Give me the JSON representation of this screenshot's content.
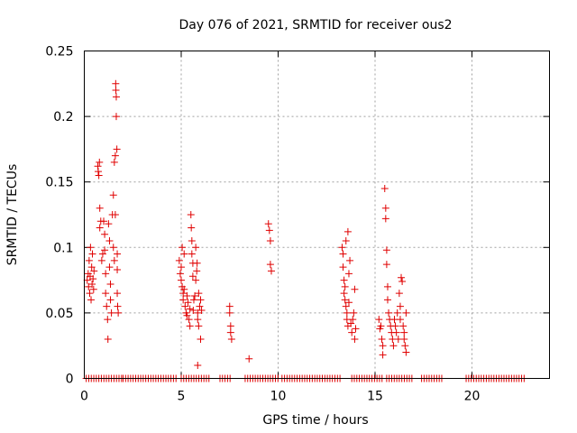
{
  "chart_data": {
    "type": "scatter",
    "title": "Day 076 of 2021, SRMTID for receiver ous2",
    "xlabel": "GPS time / hours",
    "ylabel": "SRMTID / TECUs",
    "xlim": [
      0,
      24
    ],
    "ylim": [
      0,
      0.25
    ],
    "xticks": [
      0,
      5,
      10,
      15,
      20
    ],
    "xtick_labels": [
      "0",
      "5",
      "10",
      "15",
      "20"
    ],
    "yticks": [
      0,
      0.05,
      0.1,
      0.15,
      0.2,
      0.25
    ],
    "ytick_labels": [
      "0",
      "0.05",
      "0.1",
      "0.15",
      "0.2",
      "0.25"
    ],
    "grid": true,
    "marker": "+",
    "color": "#e00000",
    "series": [
      {
        "name": "SRMTID",
        "points": [
          [
            0.15,
            0.075
          ],
          [
            0.2,
            0.08
          ],
          [
            0.22,
            0.07
          ],
          [
            0.25,
            0.09
          ],
          [
            0.28,
            0.065
          ],
          [
            0.3,
            0.078
          ],
          [
            0.32,
            0.1
          ],
          [
            0.35,
            0.06
          ],
          [
            0.38,
            0.085
          ],
          [
            0.4,
            0.072
          ],
          [
            0.42,
            0.095
          ],
          [
            0.45,
            0.076
          ],
          [
            0.48,
            0.068
          ],
          [
            0.5,
            0.082
          ],
          [
            0.7,
            0.162
          ],
          [
            0.72,
            0.158
          ],
          [
            0.75,
            0.155
          ],
          [
            0.78,
            0.165
          ],
          [
            0.8,
            0.13
          ],
          [
            0.8,
            0.115
          ],
          [
            0.85,
            0.12
          ],
          [
            0.9,
            0.09
          ],
          [
            0.95,
            0.095
          ],
          [
            1.0,
            0.12
          ],
          [
            1.05,
            0.11
          ],
          [
            1.05,
            0.098
          ],
          [
            1.1,
            0.08
          ],
          [
            1.1,
            0.065
          ],
          [
            1.15,
            0.055
          ],
          [
            1.2,
            0.045
          ],
          [
            1.22,
            0.03
          ],
          [
            1.25,
            0.118
          ],
          [
            1.3,
            0.105
          ],
          [
            1.3,
            0.085
          ],
          [
            1.35,
            0.072
          ],
          [
            1.35,
            0.06
          ],
          [
            1.4,
            0.05
          ],
          [
            1.45,
            0.125
          ],
          [
            1.5,
            0.14
          ],
          [
            1.5,
            0.1
          ],
          [
            1.55,
            0.09
          ],
          [
            1.55,
            0.165
          ],
          [
            1.6,
            0.17
          ],
          [
            1.6,
            0.125
          ],
          [
            1.62,
            0.225
          ],
          [
            1.63,
            0.22
          ],
          [
            1.65,
            0.215
          ],
          [
            1.65,
            0.2
          ],
          [
            1.68,
            0.175
          ],
          [
            1.7,
            0.095
          ],
          [
            1.7,
            0.083
          ],
          [
            1.7,
            0.065
          ],
          [
            1.72,
            0.055
          ],
          [
            1.75,
            0.05
          ],
          [
            4.9,
            0.09
          ],
          [
            4.95,
            0.08
          ],
          [
            5.0,
            0.085
          ],
          [
            5.0,
            0.075
          ],
          [
            5.05,
            0.07
          ],
          [
            5.05,
            0.1
          ],
          [
            5.1,
            0.065
          ],
          [
            5.1,
            0.06
          ],
          [
            5.15,
            0.095
          ],
          [
            5.15,
            0.068
          ],
          [
            5.2,
            0.055
          ],
          [
            5.25,
            0.05
          ],
          [
            5.3,
            0.063
          ],
          [
            5.3,
            0.048
          ],
          [
            5.35,
            0.058
          ],
          [
            5.4,
            0.045
          ],
          [
            5.45,
            0.04
          ],
          [
            5.45,
            0.053
          ],
          [
            5.5,
            0.125
          ],
          [
            5.52,
            0.115
          ],
          [
            5.55,
            0.105
          ],
          [
            5.55,
            0.095
          ],
          [
            5.6,
            0.088
          ],
          [
            5.6,
            0.078
          ],
          [
            5.62,
            0.052
          ],
          [
            5.65,
            0.06
          ],
          [
            5.7,
            0.063
          ],
          [
            5.75,
            0.1
          ],
          [
            5.75,
            0.075
          ],
          [
            5.8,
            0.082
          ],
          [
            5.82,
            0.088
          ],
          [
            5.85,
            0.045
          ],
          [
            5.85,
            0.05
          ],
          [
            5.9,
            0.065
          ],
          [
            5.9,
            0.04
          ],
          [
            5.95,
            0.055
          ],
          [
            6.0,
            0.06
          ],
          [
            6.0,
            0.03
          ],
          [
            6.05,
            0.052
          ],
          [
            5.85,
            0.01
          ],
          [
            7.5,
            0.055
          ],
          [
            7.5,
            0.05
          ],
          [
            7.55,
            0.04
          ],
          [
            7.55,
            0.035
          ],
          [
            7.6,
            0.03
          ],
          [
            8.5,
            0.015
          ],
          [
            9.5,
            0.118
          ],
          [
            9.55,
            0.113
          ],
          [
            9.6,
            0.105
          ],
          [
            9.6,
            0.087
          ],
          [
            9.65,
            0.082
          ],
          [
            13.3,
            0.1
          ],
          [
            13.35,
            0.095
          ],
          [
            13.35,
            0.085
          ],
          [
            13.4,
            0.075
          ],
          [
            13.4,
            0.065
          ],
          [
            13.45,
            0.07
          ],
          [
            13.45,
            0.06
          ],
          [
            13.5,
            0.105
          ],
          [
            13.5,
            0.055
          ],
          [
            13.55,
            0.05
          ],
          [
            13.55,
            0.045
          ],
          [
            13.6,
            0.112
          ],
          [
            13.6,
            0.04
          ],
          [
            13.65,
            0.08
          ],
          [
            13.65,
            0.058
          ],
          [
            13.7,
            0.09
          ],
          [
            13.75,
            0.042
          ],
          [
            13.8,
            0.035
          ],
          [
            13.85,
            0.045
          ],
          [
            13.9,
            0.05
          ],
          [
            13.95,
            0.068
          ],
          [
            13.95,
            0.03
          ],
          [
            14.0,
            0.038
          ],
          [
            15.2,
            0.045
          ],
          [
            15.25,
            0.038
          ],
          [
            15.3,
            0.04
          ],
          [
            15.35,
            0.03
          ],
          [
            15.4,
            0.025
          ],
          [
            15.4,
            0.018
          ],
          [
            15.5,
            0.145
          ],
          [
            15.55,
            0.13
          ],
          [
            15.55,
            0.122
          ],
          [
            15.6,
            0.098
          ],
          [
            15.6,
            0.087
          ],
          [
            15.65,
            0.07
          ],
          [
            15.65,
            0.06
          ],
          [
            15.7,
            0.05
          ],
          [
            15.75,
            0.045
          ],
          [
            15.8,
            0.04
          ],
          [
            15.85,
            0.035
          ],
          [
            15.9,
            0.03
          ],
          [
            15.95,
            0.025
          ],
          [
            16.0,
            0.045
          ],
          [
            16.05,
            0.04
          ],
          [
            16.1,
            0.035
          ],
          [
            16.15,
            0.05
          ],
          [
            16.2,
            0.03
          ],
          [
            16.25,
            0.065
          ],
          [
            16.3,
            0.055
          ],
          [
            16.3,
            0.045
          ],
          [
            16.35,
            0.077
          ],
          [
            16.4,
            0.074
          ],
          [
            16.45,
            0.04
          ],
          [
            16.5,
            0.035
          ],
          [
            16.5,
            0.03
          ],
          [
            16.55,
            0.025
          ],
          [
            16.6,
            0.05
          ],
          [
            16.6,
            0.02
          ]
        ]
      },
      {
        "name": "zero",
        "y": 0,
        "x_ranges": [
          [
            0.1,
            2.0
          ],
          [
            2.0,
            4.8
          ],
          [
            5.0,
            6.5
          ],
          [
            7.0,
            7.6
          ],
          [
            8.3,
            10.0
          ],
          [
            10.2,
            13.2
          ],
          [
            13.8,
            15.4
          ],
          [
            15.6,
            17.0
          ],
          [
            17.4,
            18.5
          ],
          [
            19.7,
            22.7
          ]
        ],
        "x_step": 0.13
      }
    ]
  }
}
